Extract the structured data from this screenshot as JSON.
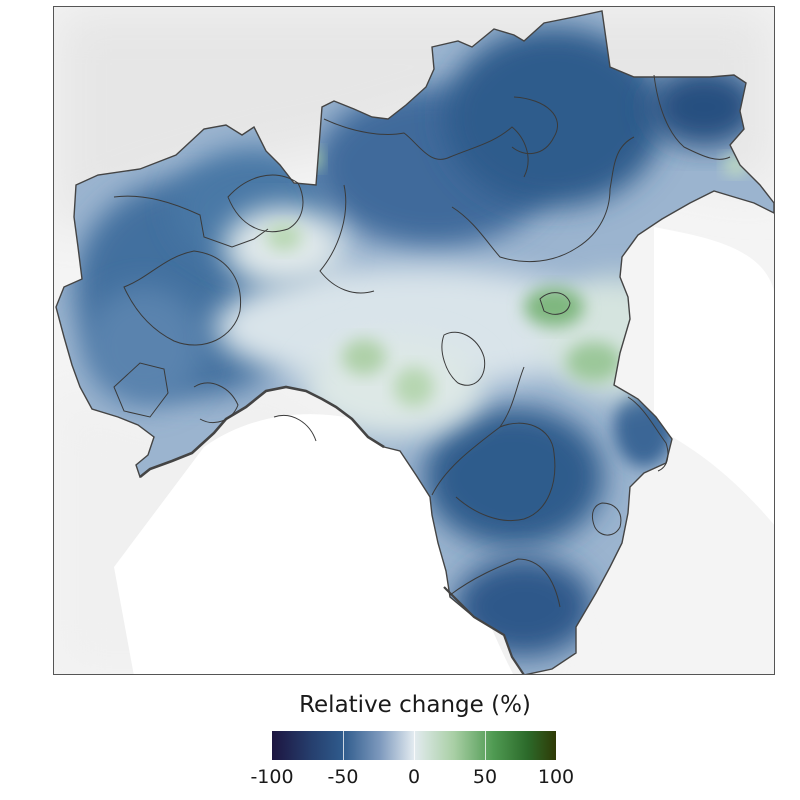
{
  "legend": {
    "title": "Relative change (%)",
    "ticks": [
      "-100",
      "-50",
      "0",
      "50",
      "100"
    ],
    "scale_min": -100,
    "scale_max": 100,
    "colors": {
      "strong_decrease": "#1d1540",
      "decrease": "#2f5b8c",
      "neutral": "#e3ebf0",
      "increase": "#4f9a52",
      "strong_increase": "#2f3a06"
    }
  },
  "map": {
    "outline_color": "#444444",
    "background_relief": "#eeeeee"
  }
}
